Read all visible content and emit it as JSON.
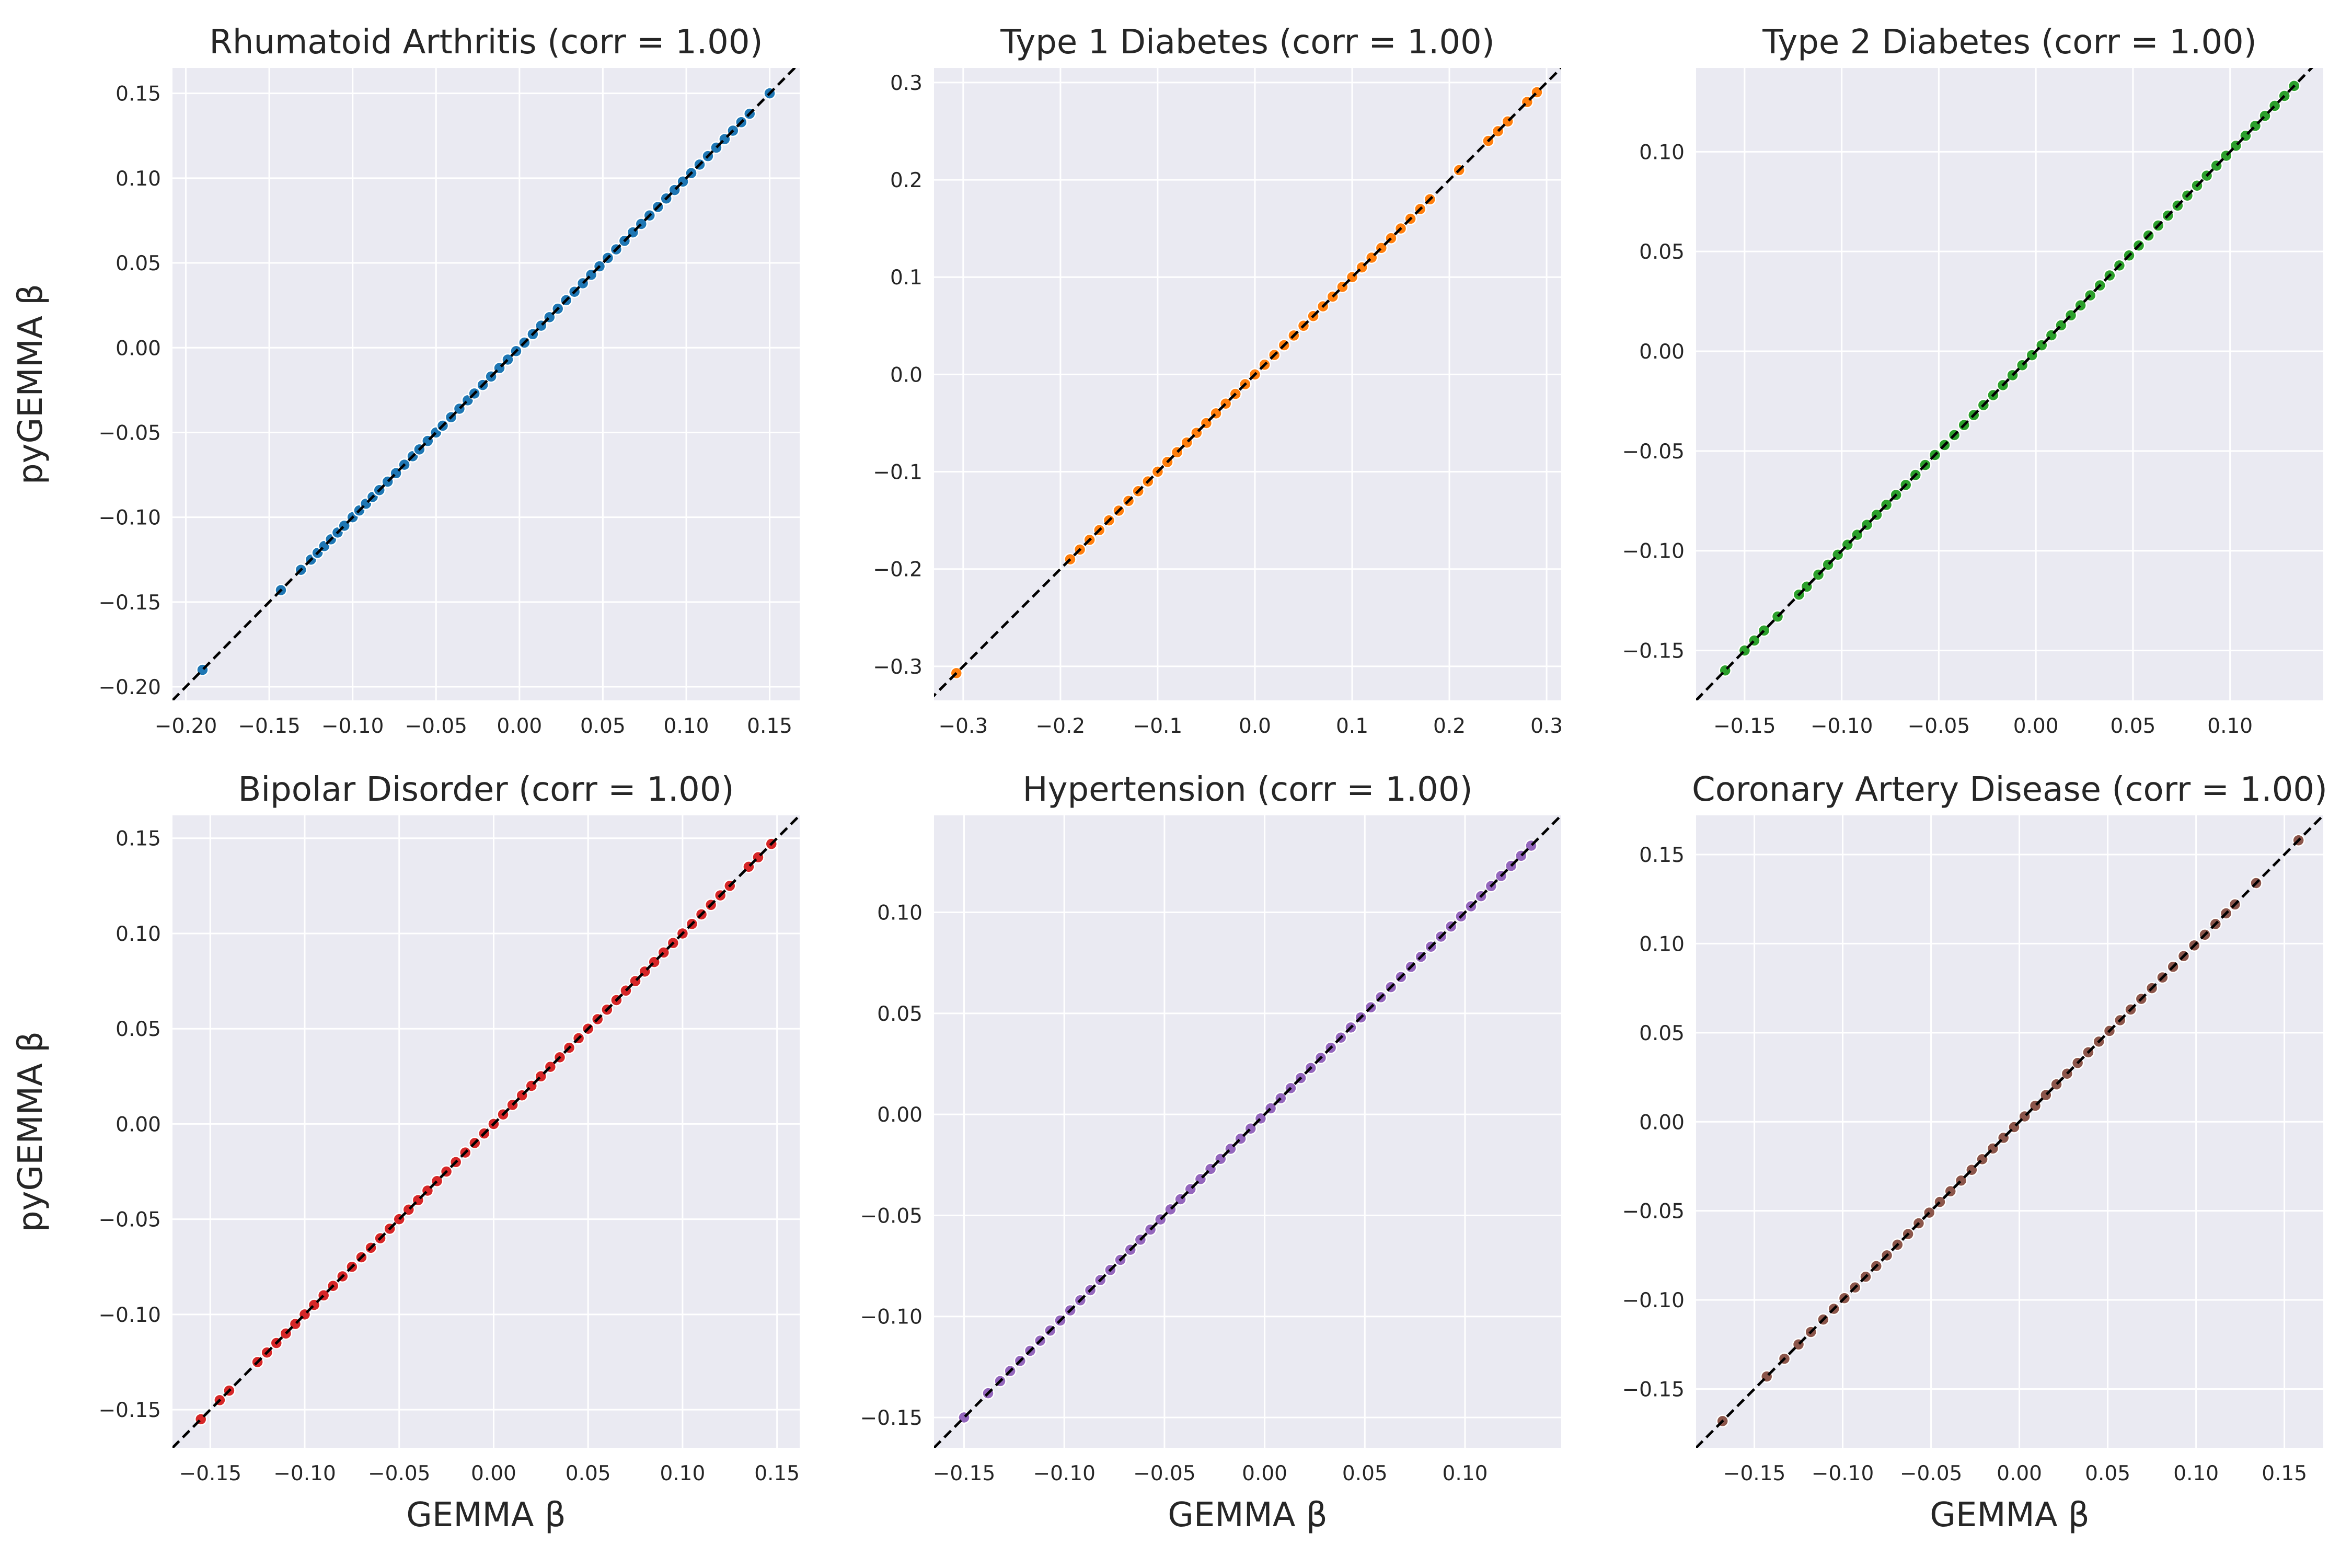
{
  "figure": {
    "background": "#ffffff",
    "panel_background": "#eaeaf2",
    "grid_color": "#ffffff",
    "diagonal_color": "#000000"
  },
  "chart_data": [
    {
      "type": "scatter",
      "title": "Rhumatoid Arthritis (corr = 1.00)",
      "xlabel": "",
      "ylabel": "pyGEMMA β",
      "color": "#1f77b4",
      "xlim": [
        -0.208,
        0.168
      ],
      "ylim": [
        -0.208,
        0.165
      ],
      "xticks": [
        -0.2,
        -0.15,
        -0.1,
        -0.05,
        0.0,
        0.05,
        0.1,
        0.15
      ],
      "xtick_labels": [
        "−0.20",
        "−0.15",
        "−0.10",
        "−0.05",
        "0.00",
        "0.05",
        "0.10",
        "0.15"
      ],
      "yticks": [
        -0.2,
        -0.15,
        -0.1,
        -0.05,
        0.0,
        0.05,
        0.1,
        0.15
      ],
      "ytick_labels": [
        "−0.20",
        "−0.15",
        "−0.10",
        "−0.05",
        "0.00",
        "0.05",
        "0.10",
        "0.15"
      ],
      "x": [
        -0.19,
        -0.143,
        -0.131,
        -0.125,
        -0.121,
        -0.117,
        -0.113,
        -0.109,
        -0.105,
        -0.1,
        -0.096,
        -0.092,
        -0.088,
        -0.084,
        -0.079,
        -0.074,
        -0.069,
        -0.064,
        -0.06,
        -0.055,
        -0.05,
        -0.046,
        -0.041,
        -0.036,
        -0.031,
        -0.027,
        -0.022,
        -0.017,
        -0.012,
        -0.007,
        -0.002,
        0.003,
        0.008,
        0.013,
        0.018,
        0.023,
        0.028,
        0.033,
        0.038,
        0.043,
        0.048,
        0.053,
        0.058,
        0.063,
        0.068,
        0.073,
        0.078,
        0.083,
        0.088,
        0.093,
        0.098,
        0.103,
        0.108,
        0.113,
        0.118,
        0.123,
        0.128,
        0.133,
        0.138,
        0.15
      ],
      "y": [
        -0.19,
        -0.143,
        -0.131,
        -0.125,
        -0.121,
        -0.117,
        -0.113,
        -0.109,
        -0.105,
        -0.1,
        -0.096,
        -0.092,
        -0.088,
        -0.084,
        -0.079,
        -0.074,
        -0.069,
        -0.064,
        -0.06,
        -0.055,
        -0.05,
        -0.046,
        -0.041,
        -0.036,
        -0.031,
        -0.027,
        -0.022,
        -0.017,
        -0.012,
        -0.007,
        -0.002,
        0.003,
        0.008,
        0.013,
        0.018,
        0.023,
        0.028,
        0.033,
        0.038,
        0.043,
        0.048,
        0.053,
        0.058,
        0.063,
        0.068,
        0.073,
        0.078,
        0.083,
        0.088,
        0.093,
        0.098,
        0.103,
        0.108,
        0.113,
        0.118,
        0.123,
        0.128,
        0.133,
        0.138,
        0.15
      ],
      "grid": true
    },
    {
      "type": "scatter",
      "title": "Type 1 Diabetes (corr = 1.00)",
      "xlabel": "",
      "ylabel": "",
      "color": "#ff7f0e",
      "xlim": [
        -0.33,
        0.315
      ],
      "ylim": [
        -0.335,
        0.315
      ],
      "xticks": [
        -0.3,
        -0.2,
        -0.1,
        0.0,
        0.1,
        0.2,
        0.3
      ],
      "xtick_labels": [
        "−0.3",
        "−0.2",
        "−0.1",
        "0.0",
        "0.1",
        "0.2",
        "0.3"
      ],
      "yticks": [
        -0.3,
        -0.2,
        -0.1,
        0.0,
        0.1,
        0.2,
        0.3
      ],
      "ytick_labels": [
        "−0.3",
        "−0.2",
        "−0.1",
        "0.0",
        "0.1",
        "0.2",
        "0.3"
      ],
      "x": [
        -0.307,
        -0.19,
        -0.18,
        -0.17,
        -0.16,
        -0.15,
        -0.14,
        -0.13,
        -0.12,
        -0.11,
        -0.1,
        -0.09,
        -0.08,
        -0.07,
        -0.06,
        -0.05,
        -0.04,
        -0.03,
        -0.02,
        -0.01,
        0.0,
        0.01,
        0.02,
        0.03,
        0.04,
        0.05,
        0.06,
        0.07,
        0.08,
        0.09,
        0.1,
        0.11,
        0.12,
        0.13,
        0.14,
        0.15,
        0.16,
        0.17,
        0.18,
        0.21,
        0.24,
        0.25,
        0.26,
        0.28,
        0.29
      ],
      "y": [
        -0.307,
        -0.19,
        -0.18,
        -0.17,
        -0.16,
        -0.15,
        -0.14,
        -0.13,
        -0.12,
        -0.11,
        -0.1,
        -0.09,
        -0.08,
        -0.07,
        -0.06,
        -0.05,
        -0.04,
        -0.03,
        -0.02,
        -0.01,
        0.0,
        0.01,
        0.02,
        0.03,
        0.04,
        0.05,
        0.06,
        0.07,
        0.08,
        0.09,
        0.1,
        0.11,
        0.12,
        0.13,
        0.14,
        0.15,
        0.16,
        0.17,
        0.18,
        0.21,
        0.24,
        0.25,
        0.26,
        0.28,
        0.29
      ],
      "grid": true
    },
    {
      "type": "scatter",
      "title": "Type 2 Diabetes (corr = 1.00)",
      "xlabel": "",
      "ylabel": "",
      "color": "#2ca02c",
      "xlim": [
        -0.175,
        0.148
      ],
      "ylim": [
        -0.175,
        0.142
      ],
      "xticks": [
        -0.15,
        -0.1,
        -0.05,
        0.0,
        0.05,
        0.1
      ],
      "xtick_labels": [
        "−0.15",
        "−0.10",
        "−0.05",
        "0.00",
        "0.05",
        "0.10"
      ],
      "yticks": [
        -0.15,
        -0.1,
        -0.05,
        0.0,
        0.05,
        0.1
      ],
      "ytick_labels": [
        "−0.15",
        "−0.10",
        "−0.05",
        "0.00",
        "0.05",
        "0.10"
      ],
      "x": [
        -0.16,
        -0.15,
        -0.145,
        -0.14,
        -0.133,
        -0.122,
        -0.118,
        -0.112,
        -0.107,
        -0.102,
        -0.097,
        -0.092,
        -0.087,
        -0.082,
        -0.077,
        -0.072,
        -0.067,
        -0.062,
        -0.057,
        -0.052,
        -0.047,
        -0.042,
        -0.037,
        -0.032,
        -0.027,
        -0.022,
        -0.017,
        -0.012,
        -0.007,
        -0.002,
        0.003,
        0.008,
        0.013,
        0.018,
        0.023,
        0.028,
        0.033,
        0.038,
        0.043,
        0.048,
        0.053,
        0.058,
        0.063,
        0.068,
        0.073,
        0.078,
        0.083,
        0.088,
        0.093,
        0.098,
        0.103,
        0.108,
        0.113,
        0.118,
        0.123,
        0.128,
        0.133
      ],
      "y": [
        -0.16,
        -0.15,
        -0.145,
        -0.14,
        -0.133,
        -0.122,
        -0.118,
        -0.112,
        -0.107,
        -0.102,
        -0.097,
        -0.092,
        -0.087,
        -0.082,
        -0.077,
        -0.072,
        -0.067,
        -0.062,
        -0.057,
        -0.052,
        -0.047,
        -0.042,
        -0.037,
        -0.032,
        -0.027,
        -0.022,
        -0.017,
        -0.012,
        -0.007,
        -0.002,
        0.003,
        0.008,
        0.013,
        0.018,
        0.023,
        0.028,
        0.033,
        0.038,
        0.043,
        0.048,
        0.053,
        0.058,
        0.063,
        0.068,
        0.073,
        0.078,
        0.083,
        0.088,
        0.093,
        0.098,
        0.103,
        0.108,
        0.113,
        0.118,
        0.123,
        0.128,
        0.133
      ],
      "grid": true
    },
    {
      "type": "scatter",
      "title": "Bipolar Disorder (corr = 1.00)",
      "xlabel": "GEMMA β",
      "ylabel": "pyGEMMA β",
      "color": "#d62728",
      "xlim": [
        -0.17,
        0.162
      ],
      "ylim": [
        -0.17,
        0.162
      ],
      "xticks": [
        -0.15,
        -0.1,
        -0.05,
        0.0,
        0.05,
        0.1,
        0.15
      ],
      "xtick_labels": [
        "−0.15",
        "−0.10",
        "−0.05",
        "0.00",
        "0.05",
        "0.10",
        "0.15"
      ],
      "yticks": [
        -0.15,
        -0.1,
        -0.05,
        0.0,
        0.05,
        0.1,
        0.15
      ],
      "ytick_labels": [
        "−0.15",
        "−0.10",
        "−0.05",
        "0.00",
        "0.05",
        "0.10",
        "0.15"
      ],
      "x": [
        -0.155,
        -0.145,
        -0.14,
        -0.125,
        -0.12,
        -0.115,
        -0.11,
        -0.105,
        -0.1,
        -0.095,
        -0.09,
        -0.085,
        -0.08,
        -0.075,
        -0.07,
        -0.065,
        -0.06,
        -0.055,
        -0.05,
        -0.045,
        -0.04,
        -0.035,
        -0.03,
        -0.025,
        -0.02,
        -0.015,
        -0.01,
        -0.005,
        0.0,
        0.005,
        0.01,
        0.015,
        0.02,
        0.025,
        0.03,
        0.035,
        0.04,
        0.045,
        0.05,
        0.055,
        0.06,
        0.065,
        0.07,
        0.075,
        0.08,
        0.085,
        0.09,
        0.095,
        0.1,
        0.105,
        0.11,
        0.115,
        0.12,
        0.125,
        0.135,
        0.14,
        0.147
      ],
      "y": [
        -0.155,
        -0.145,
        -0.14,
        -0.125,
        -0.12,
        -0.115,
        -0.11,
        -0.105,
        -0.1,
        -0.095,
        -0.09,
        -0.085,
        -0.08,
        -0.075,
        -0.07,
        -0.065,
        -0.06,
        -0.055,
        -0.05,
        -0.045,
        -0.04,
        -0.035,
        -0.03,
        -0.025,
        -0.02,
        -0.015,
        -0.01,
        -0.005,
        0.0,
        0.005,
        0.01,
        0.015,
        0.02,
        0.025,
        0.03,
        0.035,
        0.04,
        0.045,
        0.05,
        0.055,
        0.06,
        0.065,
        0.07,
        0.075,
        0.08,
        0.085,
        0.09,
        0.095,
        0.1,
        0.105,
        0.11,
        0.115,
        0.12,
        0.125,
        0.135,
        0.14,
        0.147
      ],
      "grid": true
    },
    {
      "type": "scatter",
      "title": "Hypertension (corr = 1.00)",
      "xlabel": "GEMMA β",
      "ylabel": "",
      "color": "#9467bd",
      "xlim": [
        -0.165,
        0.148
      ],
      "ylim": [
        -0.165,
        0.148
      ],
      "xticks": [
        -0.15,
        -0.1,
        -0.05,
        0.0,
        0.05,
        0.1
      ],
      "xtick_labels": [
        "−0.15",
        "−0.10",
        "−0.05",
        "0.00",
        "0.05",
        "0.10"
      ],
      "yticks": [
        -0.15,
        -0.1,
        -0.05,
        0.0,
        0.05,
        0.1
      ],
      "ytick_labels": [
        "−0.15",
        "−0.10",
        "−0.05",
        "0.00",
        "0.05",
        "0.10"
      ],
      "x": [
        -0.15,
        -0.138,
        -0.132,
        -0.127,
        -0.122,
        -0.117,
        -0.112,
        -0.107,
        -0.102,
        -0.097,
        -0.092,
        -0.087,
        -0.082,
        -0.077,
        -0.072,
        -0.067,
        -0.062,
        -0.057,
        -0.052,
        -0.047,
        -0.042,
        -0.037,
        -0.032,
        -0.027,
        -0.022,
        -0.017,
        -0.012,
        -0.007,
        -0.002,
        0.003,
        0.008,
        0.013,
        0.018,
        0.023,
        0.028,
        0.033,
        0.038,
        0.043,
        0.048,
        0.053,
        0.058,
        0.063,
        0.068,
        0.073,
        0.078,
        0.083,
        0.088,
        0.093,
        0.098,
        0.103,
        0.108,
        0.113,
        0.118,
        0.123,
        0.128,
        0.133
      ],
      "y": [
        -0.15,
        -0.138,
        -0.132,
        -0.127,
        -0.122,
        -0.117,
        -0.112,
        -0.107,
        -0.102,
        -0.097,
        -0.092,
        -0.087,
        -0.082,
        -0.077,
        -0.072,
        -0.067,
        -0.062,
        -0.057,
        -0.052,
        -0.047,
        -0.042,
        -0.037,
        -0.032,
        -0.027,
        -0.022,
        -0.017,
        -0.012,
        -0.007,
        -0.002,
        0.003,
        0.008,
        0.013,
        0.018,
        0.023,
        0.028,
        0.033,
        0.038,
        0.043,
        0.048,
        0.053,
        0.058,
        0.063,
        0.068,
        0.073,
        0.078,
        0.083,
        0.088,
        0.093,
        0.098,
        0.103,
        0.108,
        0.113,
        0.118,
        0.123,
        0.128,
        0.133
      ],
      "grid": true
    },
    {
      "type": "scatter",
      "title": "Coronary Artery Disease (corr = 1.00)",
      "xlabel": "GEMMA β",
      "ylabel": "",
      "color": "#8c564b",
      "xlim": [
        -0.183,
        0.172
      ],
      "ylim": [
        -0.183,
        0.172
      ],
      "xticks": [
        -0.15,
        -0.1,
        -0.05,
        0.0,
        0.05,
        0.1,
        0.15
      ],
      "xtick_labels": [
        "−0.15",
        "−0.10",
        "−0.05",
        "0.00",
        "0.05",
        "0.10",
        "0.15"
      ],
      "yticks": [
        -0.15,
        -0.1,
        -0.05,
        0.0,
        0.05,
        0.1,
        0.15
      ],
      "ytick_labels": [
        "−0.15",
        "−0.10",
        "−0.05",
        "0.00",
        "0.05",
        "0.10",
        "0.15"
      ],
      "x": [
        -0.168,
        -0.143,
        -0.133,
        -0.125,
        -0.118,
        -0.111,
        -0.105,
        -0.099,
        -0.093,
        -0.087,
        -0.081,
        -0.075,
        -0.069,
        -0.063,
        -0.057,
        -0.051,
        -0.045,
        -0.039,
        -0.033,
        -0.027,
        -0.021,
        -0.015,
        -0.009,
        -0.003,
        0.003,
        0.009,
        0.015,
        0.021,
        0.027,
        0.033,
        0.039,
        0.045,
        0.051,
        0.057,
        0.063,
        0.069,
        0.075,
        0.081,
        0.087,
        0.093,
        0.099,
        0.105,
        0.111,
        0.117,
        0.122,
        0.134,
        0.158
      ],
      "y": [
        -0.168,
        -0.143,
        -0.133,
        -0.125,
        -0.118,
        -0.111,
        -0.105,
        -0.099,
        -0.093,
        -0.087,
        -0.081,
        -0.075,
        -0.069,
        -0.063,
        -0.057,
        -0.051,
        -0.045,
        -0.039,
        -0.033,
        -0.027,
        -0.021,
        -0.015,
        -0.009,
        -0.003,
        0.003,
        0.009,
        0.015,
        0.021,
        0.027,
        0.033,
        0.039,
        0.045,
        0.051,
        0.057,
        0.063,
        0.069,
        0.075,
        0.081,
        0.087,
        0.093,
        0.099,
        0.105,
        0.111,
        0.117,
        0.122,
        0.134,
        0.158
      ],
      "grid": true
    }
  ]
}
